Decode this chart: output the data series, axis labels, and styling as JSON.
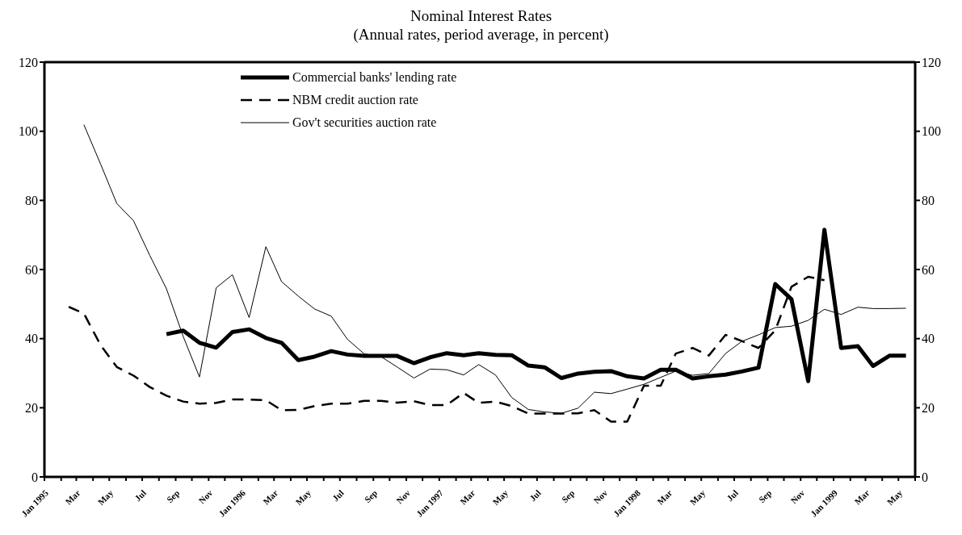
{
  "chart_data": {
    "type": "line",
    "title": "Nominal Interest Rates",
    "subtitle": "(Annual rates, period average, in percent)",
    "x": [
      "1995-02-15",
      "1995-03-15",
      "1995-04-15",
      "1995-05-15",
      "1995-06-15",
      "1995-07-15",
      "1995-08-15",
      "1995-09-15",
      "1995-10-15",
      "1995-11-15",
      "1995-12-15",
      "1996-01-15",
      "1996-02-15",
      "1996-03-15",
      "1996-04-15",
      "1996-05-15",
      "1996-06-15",
      "1996-07-15",
      "1996-08-15",
      "1996-09-15",
      "1996-10-15",
      "1996-11-15",
      "1996-12-15",
      "1997-01-15",
      "1997-02-15",
      "1997-03-15",
      "1997-04-15",
      "1997-05-15",
      "1997-06-15",
      "1997-07-15",
      "1997-08-15",
      "1997-09-15",
      "1997-10-15",
      "1997-11-15",
      "1997-12-15",
      "1998-01-15",
      "1998-02-15",
      "1998-03-15",
      "1998-04-15",
      "1998-05-15",
      "1998-06-15",
      "1998-07-15",
      "1998-08-15",
      "1998-09-15",
      "1998-10-15",
      "1998-11-15",
      "1998-12-15",
      "1999-01-15",
      "1999-02-15",
      "1999-03-15",
      "1999-04-15",
      "1999-05-15"
    ],
    "series": [
      {
        "name": "Commercial banks' lending rate",
        "color": "#000000",
        "line_style": "solid",
        "values": [
          null,
          null,
          null,
          null,
          null,
          null,
          41.3,
          42.3,
          38.8,
          37.4,
          41.9,
          42.7,
          40.2,
          38.8,
          33.8,
          34.8,
          36.4,
          35.4,
          35.0,
          35.0,
          35.0,
          32.9,
          34.6,
          35.8,
          35.2,
          35.8,
          35.3,
          35.2,
          32.2,
          31.7,
          28.6,
          29.9,
          30.4,
          30.6,
          29.1,
          28.5,
          31.0,
          31.0,
          28.5,
          29.1,
          29.6,
          30.5,
          31.6,
          55.8,
          51.4,
          27.7,
          71.5,
          37.3,
          37.8,
          32.1,
          35.1,
          35.1
        ]
      },
      {
        "name": "NBM credit auction rate",
        "color": "#000000",
        "line_style": "dashed",
        "values": [
          49.2,
          47.3,
          38.1,
          31.8,
          29.3,
          26.0,
          23.5,
          21.8,
          21.2,
          21.4,
          22.4,
          22.4,
          22.2,
          19.3,
          19.4,
          20.5,
          21.2,
          21.2,
          22.0,
          22.0,
          21.5,
          21.9,
          20.8,
          20.8,
          24.3,
          21.4,
          21.8,
          20.5,
          18.3,
          18.3,
          18.3,
          18.4,
          19.3,
          16.0,
          16.0,
          26.4,
          26.4,
          35.7,
          37.3,
          35.1,
          41.1,
          39.3,
          37.3,
          42.4,
          55.0,
          57.9,
          56.9,
          null,
          null,
          null,
          null,
          null
        ]
      },
      {
        "name": "Gov't securities auction rate",
        "color": "#000000",
        "line_style": "solid",
        "values": [
          null,
          101.9,
          90.5,
          79.1,
          74.1,
          64.1,
          54.4,
          40.6,
          28.9,
          54.7,
          58.5,
          46.1,
          66.6,
          56.5,
          52.3,
          48.6,
          46.5,
          39.8,
          35.6,
          34.8,
          31.8,
          28.6,
          31.2,
          31.0,
          29.5,
          32.5,
          29.5,
          23.0,
          19.5,
          18.8,
          18.4,
          19.9,
          24.5,
          24.1,
          25.4,
          26.8,
          28.8,
          30.6,
          29.4,
          29.9,
          35.7,
          39.2,
          41.1,
          43.2,
          43.6,
          45.3,
          48.5,
          47.0,
          49.1,
          48.7,
          48.7,
          48.8
        ]
      }
    ],
    "xlim": [
      "1995-01-01",
      "1999-06-01"
    ],
    "xticks": [
      {
        "value": "1995-01-01",
        "label": "Jan 1995"
      },
      {
        "value": "1995-02-01",
        "label": null
      },
      {
        "value": "1995-03-01",
        "label": "Mar"
      },
      {
        "value": "1995-04-01",
        "label": null
      },
      {
        "value": "1995-05-01",
        "label": "May"
      },
      {
        "value": "1995-06-01",
        "label": null
      },
      {
        "value": "1995-07-01",
        "label": "Jul"
      },
      {
        "value": "1995-08-01",
        "label": null
      },
      {
        "value": "1995-09-01",
        "label": "Sep"
      },
      {
        "value": "1995-10-01",
        "label": null
      },
      {
        "value": "1995-11-01",
        "label": "Nov"
      },
      {
        "value": "1995-12-01",
        "label": null
      },
      {
        "value": "1996-01-01",
        "label": "Jan 1996"
      },
      {
        "value": "1996-02-01",
        "label": null
      },
      {
        "value": "1996-03-01",
        "label": "Mar"
      },
      {
        "value": "1996-04-01",
        "label": null
      },
      {
        "value": "1996-05-01",
        "label": "May"
      },
      {
        "value": "1996-06-01",
        "label": null
      },
      {
        "value": "1996-07-01",
        "label": "Jul"
      },
      {
        "value": "1996-08-01",
        "label": null
      },
      {
        "value": "1996-09-01",
        "label": "Sep"
      },
      {
        "value": "1996-10-01",
        "label": null
      },
      {
        "value": "1996-11-01",
        "label": "Nov"
      },
      {
        "value": "1996-12-01",
        "label": null
      },
      {
        "value": "1997-01-01",
        "label": "Jan 1997"
      },
      {
        "value": "1997-02-01",
        "label": null
      },
      {
        "value": "1997-03-01",
        "label": "Mar"
      },
      {
        "value": "1997-04-01",
        "label": null
      },
      {
        "value": "1997-05-01",
        "label": "May"
      },
      {
        "value": "1997-06-01",
        "label": null
      },
      {
        "value": "1997-07-01",
        "label": "Jul"
      },
      {
        "value": "1997-08-01",
        "label": null
      },
      {
        "value": "1997-09-01",
        "label": "Sep"
      },
      {
        "value": "1997-10-01",
        "label": null
      },
      {
        "value": "1997-11-01",
        "label": "Nov"
      },
      {
        "value": "1997-12-01",
        "label": null
      },
      {
        "value": "1998-01-01",
        "label": "Jan 1998"
      },
      {
        "value": "1998-02-01",
        "label": null
      },
      {
        "value": "1998-03-01",
        "label": "Mar"
      },
      {
        "value": "1998-04-01",
        "label": null
      },
      {
        "value": "1998-05-01",
        "label": "May"
      },
      {
        "value": "1998-06-01",
        "label": null
      },
      {
        "value": "1998-07-01",
        "label": "Jul"
      },
      {
        "value": "1998-08-01",
        "label": null
      },
      {
        "value": "1998-09-01",
        "label": "Sep"
      },
      {
        "value": "1998-10-01",
        "label": null
      },
      {
        "value": "1998-11-01",
        "label": "Nov"
      },
      {
        "value": "1998-12-01",
        "label": null
      },
      {
        "value": "1999-01-01",
        "label": "Jan 1999"
      },
      {
        "value": "1999-02-01",
        "label": null
      },
      {
        "value": "1999-03-01",
        "label": "Mar"
      },
      {
        "value": "1999-04-01",
        "label": null
      },
      {
        "value": "1999-05-01",
        "label": "May"
      },
      {
        "value": "1999-06-01",
        "label": null
      }
    ],
    "ylim": [
      0,
      120
    ],
    "yticks": [
      0,
      20,
      40,
      60,
      80,
      100,
      120
    ],
    "y2lim": [
      0,
      120
    ],
    "y2ticks": [
      0,
      20,
      40,
      60,
      80,
      100,
      120
    ],
    "grid": false,
    "legend": "top",
    "marker": "none"
  }
}
